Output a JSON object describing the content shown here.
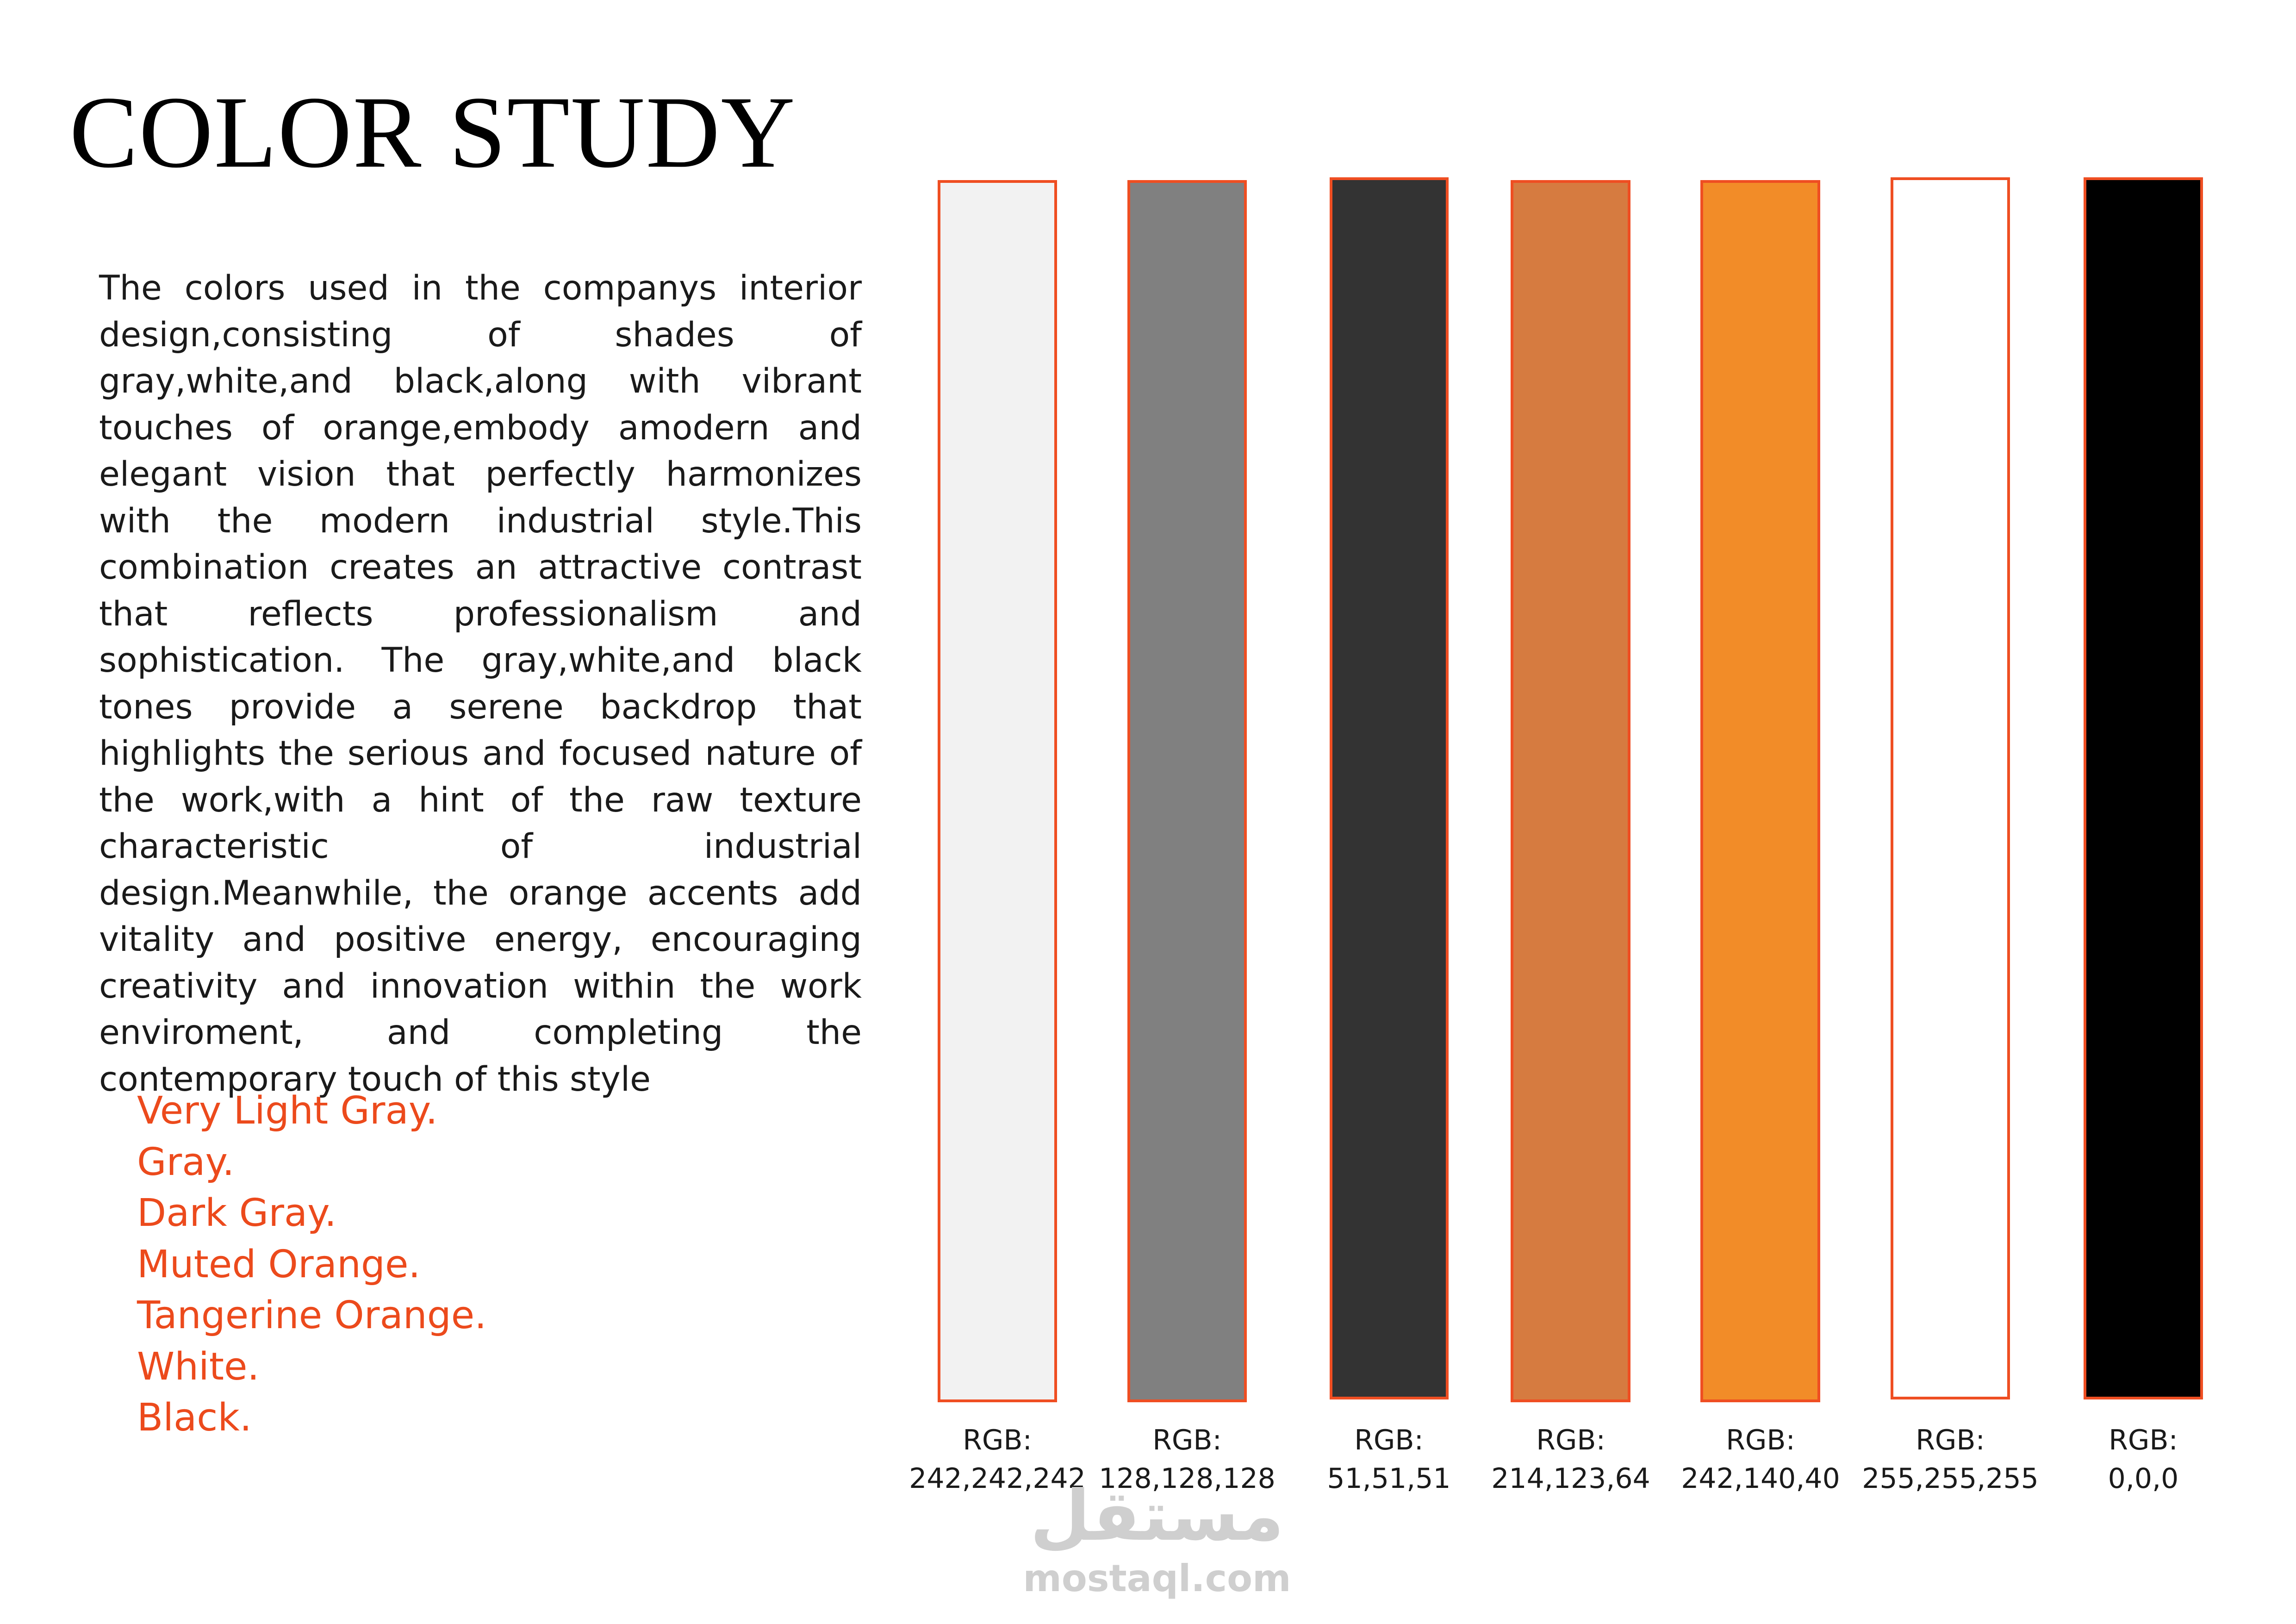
{
  "title": "COLOR STUDY",
  "description": "The colors used in the companys interior design,consisting of shades of gray,white,and black,along with vibrant touches of orange,embody amodern and elegant vision that perfectly harmonizes with the modern industrial style.This combination creates an attractive contrast that reflects professionalism and sophistication. The gray,white,and black tones provide a serene backdrop that highlights the serious and focused nature of the work,with a hint of the raw texture characteristic of industrial design.Meanwhile, the orange accents add vitality and positive energy, encouraging creativity and innovation within the work enviroment, and completing the contemporary touch of this style",
  "color_names": [
    "Very Light Gray.",
    "Gray.",
    "Dark Gray.",
    "Muted Orange.",
    "Tangerine Orange.",
    "White.",
    "Black."
  ],
  "swatches": [
    {
      "prefix": "RGB:",
      "rgb": "242,242,242",
      "hex": "#f2f2f2"
    },
    {
      "prefix": "RGB:",
      "rgb": "128,128,128",
      "hex": "#808080"
    },
    {
      "prefix": "RGB:",
      "rgb": "51,51,51",
      "hex": "#333333"
    },
    {
      "prefix": "RGB:",
      "rgb": "214,123,64",
      "hex": "#d67b40"
    },
    {
      "prefix": "RGB:",
      "rgb": "242,140,40",
      "hex": "#f28c28"
    },
    {
      "prefix": "RGB:",
      "rgb": "255,255,255",
      "hex": "#ffffff"
    },
    {
      "prefix": "RGB:",
      "rgb": "0,0,0",
      "hex": "#000000"
    }
  ],
  "colors": {
    "accent_text": "#ec4a1c",
    "swatch_border": "#ef4e22"
  },
  "watermark": {
    "arabic": "مستقل",
    "latin": "mostaql.com"
  }
}
